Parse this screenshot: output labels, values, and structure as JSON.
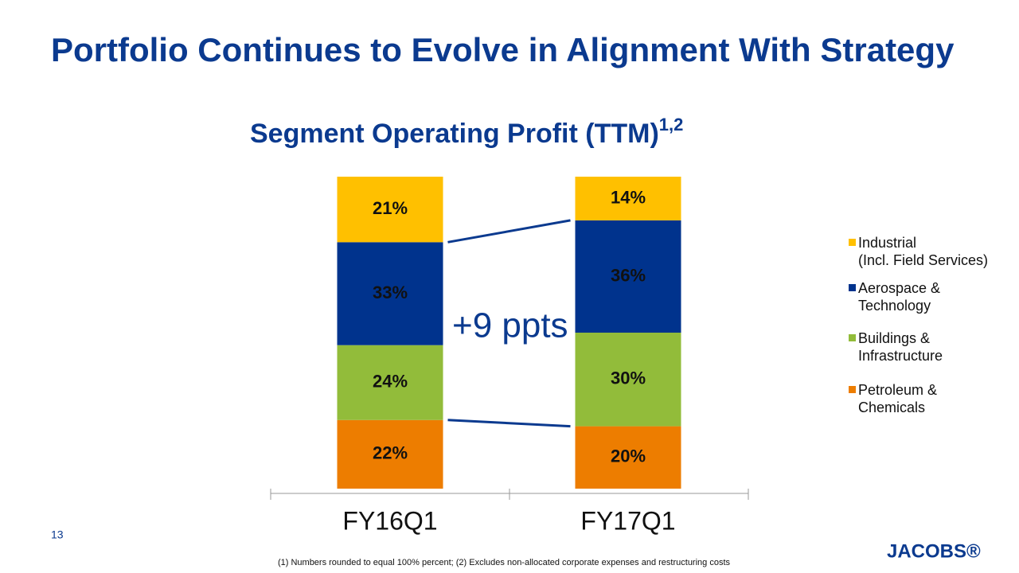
{
  "chart_data": {
    "type": "stacked_bar",
    "title": "Portfolio Continues to Evolve in Alignment With Strategy",
    "subtitle": "Segment Operating Profit (TTM)",
    "subtitle_superscript": "1,2",
    "categories": [
      "FY16Q1",
      "FY17Q1"
    ],
    "series": [
      {
        "name": "Petroleum &\nChemicals",
        "color": "#ed7d00",
        "values": [
          22,
          20
        ],
        "value_labels": [
          "22%",
          "20%"
        ]
      },
      {
        "name": "Buildings &\nInfrastructure",
        "color": "#92bc3a",
        "values": [
          24,
          30
        ],
        "value_labels": [
          "24%",
          "30%"
        ]
      },
      {
        "name": "Aerospace &\nTechnology",
        "color": "#00338d",
        "values": [
          33,
          36
        ],
        "value_labels": [
          "33%",
          "36%"
        ]
      },
      {
        "name": "Industrial\n(Incl. Field Services)",
        "color": "#ffc000",
        "values": [
          21,
          14
        ],
        "value_labels": [
          "21%",
          "14%"
        ]
      }
    ],
    "ylim": [
      0,
      100
    ],
    "annotation": "+9 ppts",
    "footnote": "(1) Numbers rounded to equal 100% percent; (2) Excludes non-allocated corporate expenses and restructuring costs"
  },
  "page": {
    "number": "13",
    "logo": "JACOBS®"
  }
}
